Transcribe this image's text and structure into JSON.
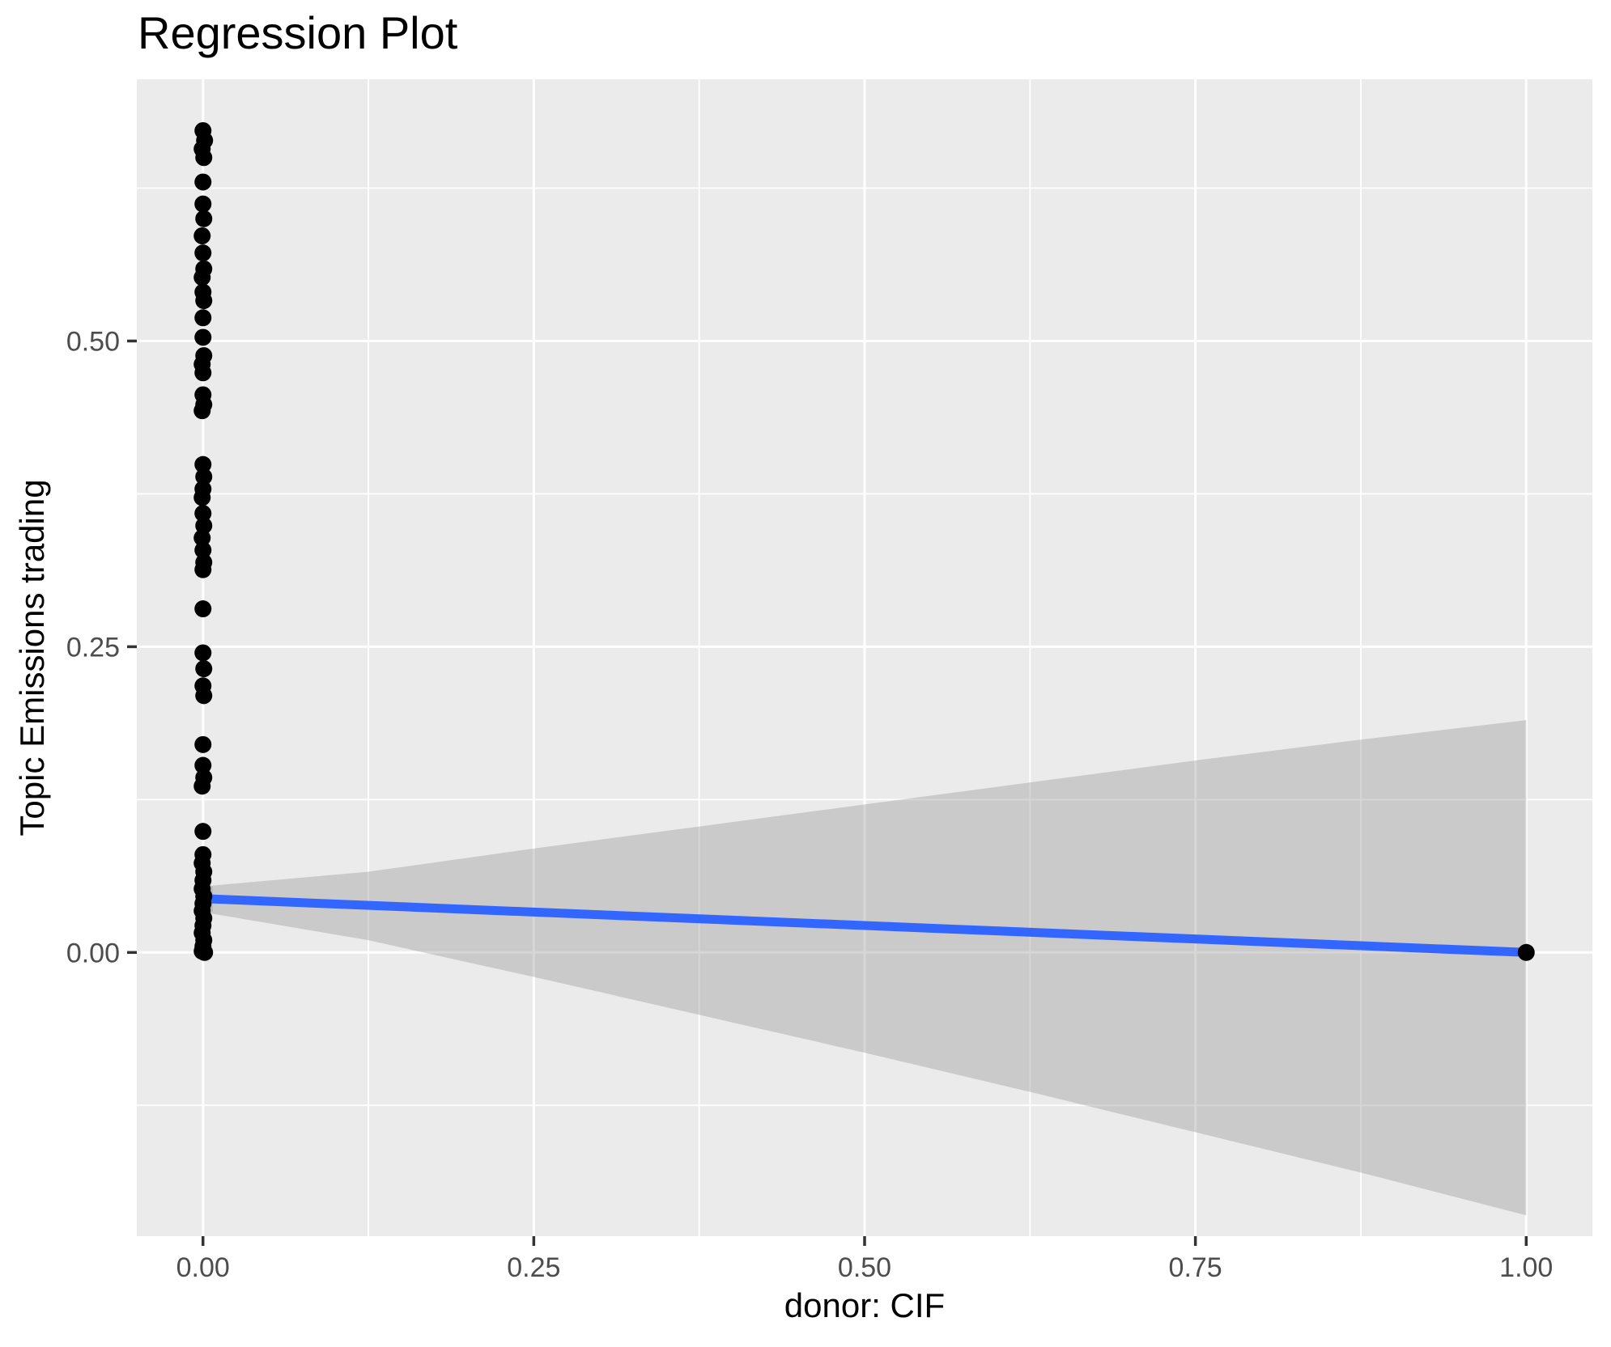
{
  "chart_data": {
    "type": "scatter",
    "title": "Regression Plot",
    "xlabel": "donor: CIF",
    "ylabel": "Topic Emissions trading",
    "xlim": [
      -0.05,
      1.05
    ],
    "ylim": [
      -0.232,
      0.714
    ],
    "grid": true,
    "legend": "none",
    "x_ticks": {
      "values": [
        0,
        0.25,
        0.5,
        0.75,
        1
      ],
      "labels": [
        "0.00",
        "0.25",
        "0.50",
        "0.75",
        "1.00"
      ]
    },
    "y_ticks": {
      "values": [
        0,
        0.25,
        0.5
      ],
      "labels": [
        "0.00",
        "0.25",
        "0.50"
      ]
    },
    "x_minor": [
      0.125,
      0.375,
      0.625,
      0.875
    ],
    "y_minor": [
      -0.125,
      0.125,
      0.375,
      0.625
    ],
    "points": [
      [
        0,
        0.672,
        0
      ],
      [
        0,
        0.664,
        2
      ],
      [
        0,
        0.657,
        -1
      ],
      [
        0,
        0.65,
        1
      ],
      [
        0,
        0.63,
        0
      ],
      [
        0,
        0.612,
        0
      ],
      [
        0,
        0.6,
        1
      ],
      [
        0,
        0.586,
        -1
      ],
      [
        0,
        0.572,
        0
      ],
      [
        0,
        0.559,
        1
      ],
      [
        0,
        0.552,
        -1
      ],
      [
        0,
        0.54,
        0
      ],
      [
        0,
        0.533,
        1
      ],
      [
        0,
        0.519,
        0
      ],
      [
        0,
        0.503,
        0
      ],
      [
        0,
        0.488,
        1
      ],
      [
        0,
        0.481,
        -1
      ],
      [
        0,
        0.474,
        0
      ],
      [
        0,
        0.456,
        0
      ],
      [
        0,
        0.448,
        1
      ],
      [
        0,
        0.443,
        -1
      ],
      [
        0,
        0.399,
        0
      ],
      [
        0,
        0.389,
        1
      ],
      [
        0,
        0.379,
        0
      ],
      [
        0,
        0.372,
        -1
      ],
      [
        0,
        0.359,
        0
      ],
      [
        0,
        0.349,
        1
      ],
      [
        0,
        0.339,
        -1
      ],
      [
        0,
        0.329,
        0
      ],
      [
        0,
        0.319,
        1
      ],
      [
        0,
        0.313,
        0
      ],
      [
        0,
        0.281,
        0
      ],
      [
        0,
        0.245,
        0
      ],
      [
        0,
        0.232,
        1
      ],
      [
        0,
        0.218,
        0
      ],
      [
        0,
        0.21,
        1
      ],
      [
        0,
        0.17,
        0
      ],
      [
        0,
        0.153,
        0
      ],
      [
        0,
        0.143,
        1
      ],
      [
        0,
        0.136,
        -1
      ],
      [
        0,
        0.099,
        0
      ],
      [
        0,
        0.08,
        0
      ],
      [
        0,
        0.073,
        -1
      ],
      [
        0,
        0.066,
        1
      ],
      [
        0,
        0.059,
        0
      ],
      [
        0,
        0.052,
        -1
      ],
      [
        0,
        0.046,
        1
      ],
      [
        0,
        0.04,
        0
      ],
      [
        0,
        0.034,
        -1
      ],
      [
        0,
        0.028,
        1
      ],
      [
        0,
        0.022,
        0
      ],
      [
        0,
        0.016,
        -1
      ],
      [
        0,
        0.01,
        1
      ],
      [
        0,
        0.005,
        0
      ],
      [
        0,
        0.001,
        -1
      ],
      [
        0,
        0.0,
        2
      ],
      [
        1,
        0.0,
        0
      ]
    ],
    "regression_line": {
      "x": [
        0,
        1
      ],
      "y": [
        0.044,
        0.0
      ]
    },
    "ci_band": {
      "x": [
        0,
        0.125,
        0.25,
        0.375,
        0.5,
        0.625,
        0.75,
        0.875,
        1
      ],
      "upper": [
        0.054,
        0.066,
        0.085,
        0.103,
        0.121,
        0.139,
        0.157,
        0.174,
        0.19
      ],
      "lower": [
        0.033,
        0.01,
        -0.02,
        -0.051,
        -0.082,
        -0.114,
        -0.147,
        -0.18,
        -0.215
      ]
    },
    "colors": {
      "panel_bg": "#EBEBEB",
      "grid": "#FFFFFF",
      "point": "#000000",
      "line": "#3366FF",
      "band": "#999999",
      "band_alpha": 0.4,
      "tick_text": "#4D4D4D",
      "tick_mark": "#333333",
      "title_text": "#000000"
    }
  }
}
